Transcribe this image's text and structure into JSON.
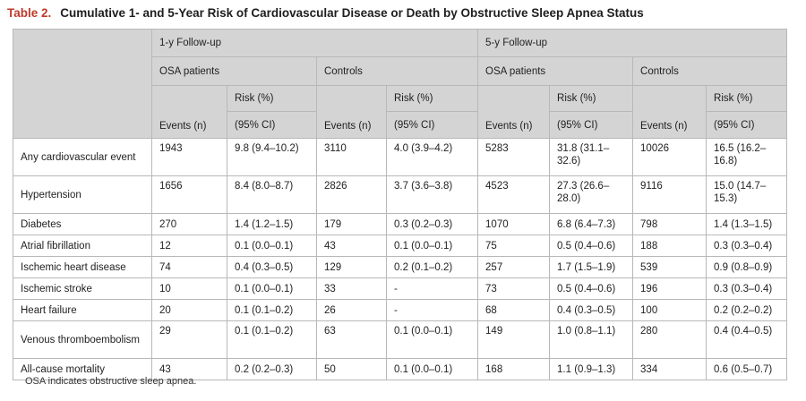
{
  "title": {
    "label": "Table 2.",
    "text": "Cumulative 1- and 5-Year Risk of Cardiovascular Disease or Death by Obstructive Sleep Apnea Status"
  },
  "header": {
    "followup_1y": "1-y Follow-up",
    "followup_5y": "5-y Follow-up",
    "osa_patients": "OSA patients",
    "controls": "Controls",
    "risk_pct": "Risk (%)",
    "events_n": "Events (n)",
    "ci_95": "(95% CI)"
  },
  "rows": [
    {
      "label": "Any cardiovascular event",
      "c": [
        "1943",
        "9.8 (9.4–10.2)",
        "3110",
        "4.0 (3.9–4.2)",
        "5283",
        "31.8 (31.1–32.6)",
        "10026",
        "16.5 (16.2–16.8)"
      ]
    },
    {
      "label": "Hypertension",
      "c": [
        "1656",
        "8.4 (8.0–8.7)",
        "2826",
        "3.7 (3.6–3.8)",
        "4523",
        "27.3 (26.6–28.0)",
        "9116",
        "15.0 (14.7–15.3)"
      ]
    },
    {
      "label": "Diabetes",
      "c": [
        "270",
        "1.4 (1.2–1.5)",
        "179",
        "0.3 (0.2–0.3)",
        "1070",
        "6.8 (6.4–7.3)",
        "798",
        "1.4 (1.3–1.5)"
      ]
    },
    {
      "label": "Atrial fibrillation",
      "c": [
        "12",
        "0.1 (0.0–0.1)",
        "43",
        "0.1 (0.0–0.1)",
        "75",
        "0.5 (0.4–0.6)",
        "188",
        "0.3 (0.3–0.4)"
      ]
    },
    {
      "label": "Ischemic heart disease",
      "c": [
        "74",
        "0.4 (0.3–0.5)",
        "129",
        "0.2 (0.1–0.2)",
        "257",
        "1.7 (1.5–1.9)",
        "539",
        "0.9 (0.8–0.9)"
      ]
    },
    {
      "label": "Ischemic stroke",
      "c": [
        "10",
        "0.1 (0.0–0.1)",
        "33",
        "-",
        "73",
        "0.5 (0.4–0.6)",
        "196",
        "0.3 (0.3–0.4)"
      ]
    },
    {
      "label": "Heart failure",
      "c": [
        "20",
        "0.1 (0.1–0.2)",
        "26",
        "-",
        "68",
        "0.4 (0.3–0.5)",
        "100",
        "0.2 (0.2–0.2)"
      ]
    },
    {
      "label": "Venous thromboembolism",
      "c": [
        "29",
        "0.1 (0.1–0.2)",
        "63",
        "0.1 (0.0–0.1)",
        "149",
        "1.0 (0.8–1.1)",
        "280",
        "0.4 (0.4–0.5)"
      ]
    },
    {
      "label": "All-cause mortality",
      "c": [
        "43",
        "0.2 (0.2–0.3)",
        "50",
        "0.1 (0.0–0.1)",
        "168",
        "1.1 (0.9–1.3)",
        "334",
        "0.6 (0.5–0.7)"
      ]
    }
  ],
  "footnote": "OSA indicates obstructive sleep apnea.",
  "colors": {
    "title_label": "#c0392b",
    "header_bg": "#d4d4d4",
    "border": "#b8b8b8"
  }
}
